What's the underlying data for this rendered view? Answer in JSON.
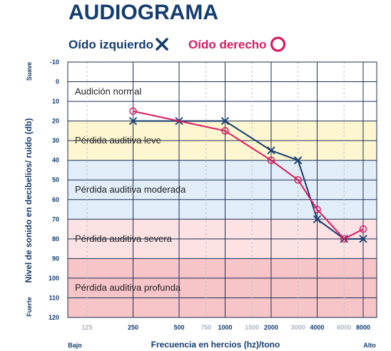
{
  "chart_data": {
    "type": "line",
    "title": "AUDIOGRAMA",
    "legend": [
      {
        "label": "Oído izquierdo",
        "marker": "x",
        "color": "#143c6e"
      },
      {
        "label": "Oído derecho",
        "marker": "circle",
        "color": "#d81b5f"
      }
    ],
    "xlabel": "Frecuencia en hercios (hz)/tono",
    "ylabel": "Nivel de sonido en decibelios/ ruido (db)",
    "x_left_label": "Bajo",
    "x_right_label": "Alto",
    "y_top_label": "Suave",
    "y_bottom_label": "Fuerte",
    "x_ticks": [
      {
        "label": "125",
        "value": 125,
        "major": false
      },
      {
        "label": "250",
        "value": 250,
        "major": true
      },
      {
        "label": "500",
        "value": 500,
        "major": true
      },
      {
        "label": "750",
        "value": 750,
        "major": false
      },
      {
        "label": "1000",
        "value": 1000,
        "major": true
      },
      {
        "label": "1500",
        "value": 1500,
        "major": false
      },
      {
        "label": "2000",
        "value": 2000,
        "major": true
      },
      {
        "label": "3000",
        "value": 3000,
        "major": false
      },
      {
        "label": "4000",
        "value": 4000,
        "major": true
      },
      {
        "label": "6000",
        "value": 6000,
        "major": false
      },
      {
        "label": "8000",
        "value": 8000,
        "major": true
      }
    ],
    "x_scale": "log",
    "xlim": [
      125,
      8000
    ],
    "y_ticks": [
      -10,
      0,
      10,
      20,
      30,
      40,
      50,
      60,
      70,
      80,
      90,
      100,
      110,
      120
    ],
    "ylim": [
      -10,
      120
    ],
    "y_inverted": true,
    "bands": [
      {
        "label": "Audición normal",
        "from": -10,
        "to": 20,
        "color": "#ffffff"
      },
      {
        "label": "Pérdida auditiva leve",
        "from": 20,
        "to": 40,
        "color": "#fdf6d0"
      },
      {
        "label": "Pérdida auditiva moderada",
        "from": 40,
        "to": 70,
        "color": "#e1edf8"
      },
      {
        "label": "Pérdida auditiva severa",
        "from": 70,
        "to": 90,
        "color": "#fde2e4"
      },
      {
        "label": "Pérdida auditiva profunda",
        "from": 90,
        "to": 120,
        "color": "#f7c4c8"
      }
    ],
    "series": [
      {
        "name": "Oído izquierdo",
        "marker": "x",
        "color": "#143c6e",
        "x": [
          250,
          500,
          1000,
          2000,
          3000,
          4000,
          6000,
          8000
        ],
        "y": [
          20,
          20,
          20,
          35,
          40,
          70,
          80,
          80
        ]
      },
      {
        "name": "Oído derecho",
        "marker": "circle",
        "color": "#d81b5f",
        "x": [
          250,
          1000,
          2000,
          3000,
          4000,
          6000,
          8000
        ],
        "y": [
          15,
          25,
          40,
          50,
          65,
          80,
          75
        ]
      }
    ]
  }
}
